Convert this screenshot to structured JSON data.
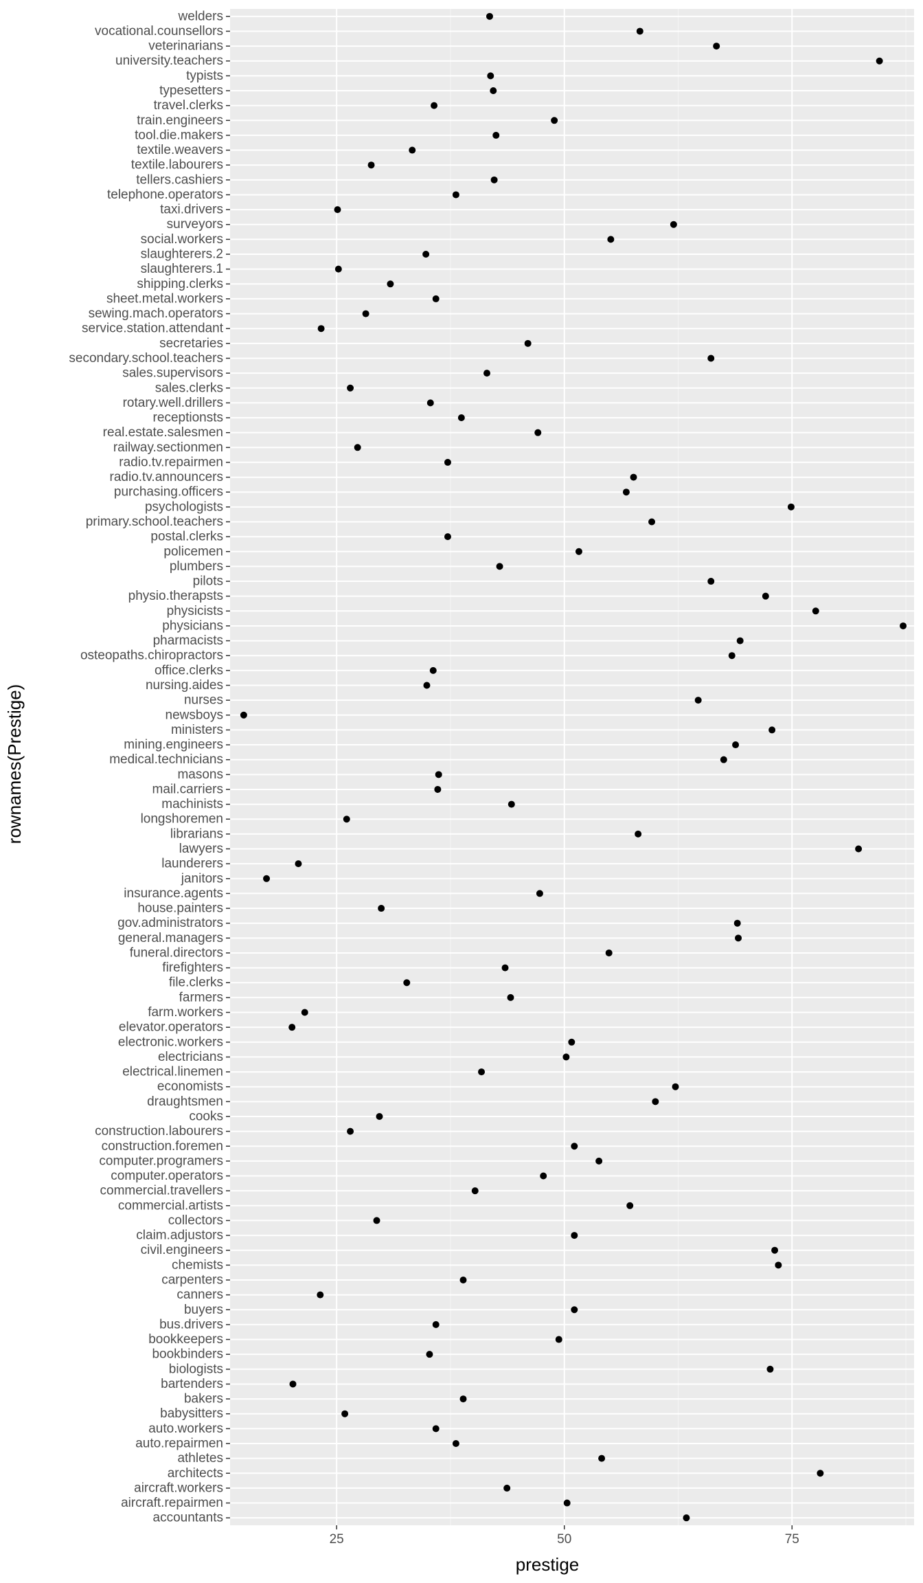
{
  "chart_data": {
    "type": "scatter",
    "xlabel": "prestige",
    "ylabel": "rownames(Prestige)",
    "xlim": [
      13.3,
      88.4
    ],
    "x_ticks": [
      25,
      50,
      75
    ],
    "grid": true,
    "theme": "ggplot2 grey",
    "colors": {
      "panel": "#EBEBEB",
      "grid_major": "#FFFFFF",
      "grid_minor": "#F5F5F5",
      "point": "#000000",
      "tick_label": "#4D4D4D"
    },
    "categories": [
      "accountants",
      "aircraft.repairmen",
      "aircraft.workers",
      "architects",
      "athletes",
      "auto.repairmen",
      "auto.workers",
      "babysitters",
      "bakers",
      "bartenders",
      "biologists",
      "bookbinders",
      "bookkeepers",
      "bus.drivers",
      "buyers",
      "canners",
      "carpenters",
      "chemists",
      "civil.engineers",
      "claim.adjustors",
      "collectors",
      "commercial.artists",
      "commercial.travellers",
      "computer.operators",
      "computer.programers",
      "construction.foremen",
      "construction.labourers",
      "cooks",
      "draughtsmen",
      "economists",
      "electrical.linemen",
      "electricians",
      "electronic.workers",
      "elevator.operators",
      "farm.workers",
      "farmers",
      "file.clerks",
      "firefighters",
      "funeral.directors",
      "general.managers",
      "gov.administrators",
      "house.painters",
      "insurance.agents",
      "janitors",
      "launderers",
      "lawyers",
      "librarians",
      "longshoremen",
      "machinists",
      "mail.carriers",
      "masons",
      "medical.technicians",
      "mining.engineers",
      "ministers",
      "newsboys",
      "nurses",
      "nursing.aides",
      "office.clerks",
      "osteopaths.chiropractors",
      "pharmacists",
      "physicians",
      "physicists",
      "physio.therapsts",
      "pilots",
      "plumbers",
      "policemen",
      "postal.clerks",
      "primary.school.teachers",
      "psychologists",
      "purchasing.officers",
      "radio.tv.announcers",
      "radio.tv.repairmen",
      "railway.sectionmen",
      "real.estate.salesmen",
      "receptionsts",
      "rotary.well.drillers",
      "sales.clerks",
      "sales.supervisors",
      "secondary.school.teachers",
      "secretaries",
      "service.station.attendant",
      "sewing.mach.operators",
      "sheet.metal.workers",
      "shipping.clerks",
      "slaughterers.1",
      "slaughterers.2",
      "social.workers",
      "surveyors",
      "taxi.drivers",
      "telephone.operators",
      "tellers.cashiers",
      "textile.labourers",
      "textile.weavers",
      "tool.die.makers",
      "train.engineers",
      "travel.clerks",
      "typesetters",
      "typists",
      "university.teachers",
      "veterinarians",
      "vocational.counsellors",
      "welders"
    ],
    "values": [
      63.4,
      50.3,
      43.7,
      78.1,
      54.1,
      38.1,
      35.9,
      25.9,
      38.9,
      20.2,
      72.6,
      35.2,
      49.4,
      35.9,
      51.1,
      23.2,
      38.9,
      73.5,
      73.1,
      51.1,
      29.4,
      57.2,
      40.2,
      47.7,
      53.8,
      51.1,
      26.5,
      29.7,
      60.0,
      62.2,
      40.9,
      50.2,
      50.8,
      20.1,
      21.5,
      44.1,
      32.7,
      43.5,
      54.9,
      69.1,
      69.0,
      29.9,
      47.3,
      17.3,
      20.8,
      82.3,
      58.1,
      26.1,
      44.2,
      36.1,
      36.2,
      67.5,
      68.8,
      72.8,
      14.8,
      64.7,
      34.9,
      35.6,
      68.4,
      69.3,
      87.2,
      77.6,
      72.1,
      66.1,
      42.9,
      51.6,
      37.2,
      59.6,
      74.9,
      56.8,
      57.6,
      37.2,
      27.3,
      47.1,
      38.7,
      35.3,
      26.5,
      41.5,
      66.1,
      46.0,
      23.3,
      28.2,
      35.9,
      30.9,
      25.2,
      34.8,
      55.1,
      62.0,
      25.1,
      38.1,
      42.3,
      28.8,
      33.3,
      42.5,
      48.9,
      35.7,
      42.2,
      41.9,
      84.6,
      66.7,
      58.3,
      41.8
    ]
  }
}
